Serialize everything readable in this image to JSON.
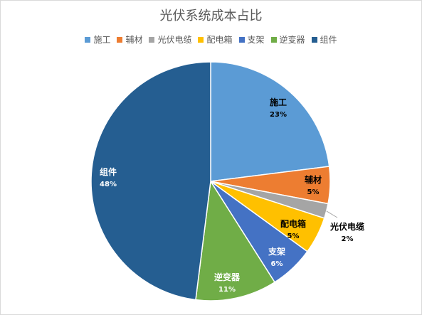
{
  "chart_data": {
    "type": "pie",
    "title": "光伏系统成本占比",
    "legend_position": "top",
    "categories": [
      "施工",
      "辅材",
      "光伏电缆",
      "配电箱",
      "支架",
      "逆变器",
      "组件"
    ],
    "values": [
      23,
      5,
      2,
      5,
      6,
      11,
      48
    ],
    "value_labels": [
      "23%",
      "5%",
      "2%",
      "5%",
      "6%",
      "11%",
      "48%"
    ],
    "colors": [
      "#5b9bd5",
      "#ed7d31",
      "#a5a5a5",
      "#ffc000",
      "#4472c4",
      "#70ad47",
      "#255e91"
    ]
  }
}
